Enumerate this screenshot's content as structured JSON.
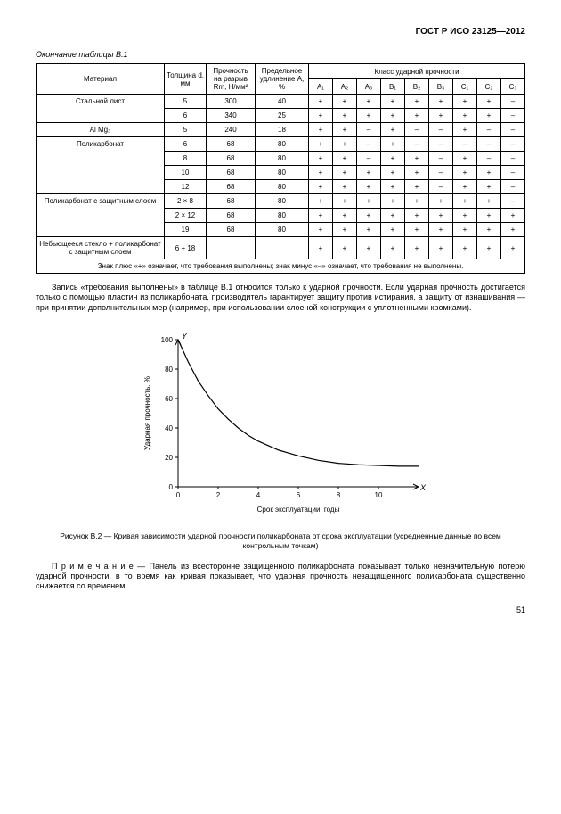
{
  "header": "ГОСТ Р ИСО 23125—2012",
  "tableTitle": "Окончание таблицы В.1",
  "columns": {
    "material": "Материал",
    "thickness": "Толщина d, мм",
    "strength": "Прочность на разрыв Rm, Н/мм²",
    "elongation": "Предельное удлинение А, %",
    "impactGroup": "Класс ударной прочности",
    "impactCols": [
      "A₁",
      "A₂",
      "A₃",
      "B₁",
      "B₂",
      "B₃",
      "C₁",
      "C₂",
      "C₃"
    ]
  },
  "rows": [
    {
      "material": "Стальной лист",
      "d": "5",
      "rm": "300",
      "a": "40",
      "cells": [
        "+",
        "+",
        "+",
        "+",
        "+",
        "+",
        "+",
        "+",
        "–"
      ],
      "rowspan": 2
    },
    {
      "material": "",
      "d": "6",
      "rm": "340",
      "a": "25",
      "cells": [
        "+",
        "+",
        "+",
        "+",
        "+",
        "+",
        "+",
        "+",
        "–"
      ]
    },
    {
      "material": "Al Mg₃",
      "d": "5",
      "rm": "240",
      "a": "18",
      "cells": [
        "+",
        "+",
        "–",
        "+",
        "–",
        "–",
        "+",
        "–",
        "–"
      ],
      "rowspan": 1
    },
    {
      "material": "Поликарбонат",
      "d": "6",
      "rm": "68",
      "a": "80",
      "cells": [
        "+",
        "+",
        "–",
        "+",
        "–",
        "–",
        "–",
        "–",
        "–"
      ],
      "rowspan": 4
    },
    {
      "material": "",
      "d": "8",
      "rm": "68",
      "a": "80",
      "cells": [
        "+",
        "+",
        "–",
        "+",
        "+",
        "–",
        "+",
        "–",
        "–"
      ]
    },
    {
      "material": "",
      "d": "10",
      "rm": "68",
      "a": "80",
      "cells": [
        "+",
        "+",
        "+",
        "+",
        "+",
        "–",
        "+",
        "+",
        "–"
      ]
    },
    {
      "material": "",
      "d": "12",
      "rm": "68",
      "a": "80",
      "cells": [
        "+",
        "+",
        "+",
        "+",
        "+",
        "–",
        "+",
        "+",
        "–"
      ]
    },
    {
      "material": "Поликарбонат с защитным слоем",
      "d": "2 × 8",
      "rm": "68",
      "a": "80",
      "cells": [
        "+",
        "+",
        "+",
        "+",
        "+",
        "+",
        "+",
        "+",
        "–"
      ],
      "rowspan": 3
    },
    {
      "material": "",
      "d": "2 × 12",
      "rm": "68",
      "a": "80",
      "cells": [
        "+",
        "+",
        "+",
        "+",
        "+",
        "+",
        "+",
        "+",
        "+"
      ]
    },
    {
      "material": "",
      "d": "19",
      "rm": "68",
      "a": "80",
      "cells": [
        "+",
        "+",
        "+",
        "+",
        "+",
        "+",
        "+",
        "+",
        "+"
      ]
    },
    {
      "material": "Небьющееся стекло + поликарбонат с защитным слоем",
      "d": "6 + 18",
      "rm": "",
      "a": "",
      "cells": [
        "+",
        "+",
        "+",
        "+",
        "+",
        "+",
        "+",
        "+",
        "+"
      ],
      "rowspan": 1
    }
  ],
  "tableNote": "Знак плюс «+» означает, что требования выполнены; знак минус «–» означает, что требования не выполнены.",
  "para1": "Запись «требования выполнены» в таблице В.1 относится только к ударной прочности. Если ударная прочность достигается только с помощью пластин из поликарбоната, производитель гарантирует защиту против истирания, а защиту от изнашивания — при принятии дополнительных мер (например, при использовании слоеной конструкции с уплотненными кромками).",
  "chart": {
    "ylabel": "Ударная прочность, %",
    "xlabel": "Срок эксплуатации, годы",
    "yAxisLabel": "Y",
    "xAxisLabel": "X",
    "xticks": [
      0,
      2,
      4,
      6,
      8,
      10
    ],
    "yticks": [
      0,
      20,
      40,
      60,
      80,
      100
    ],
    "xlim": [
      0,
      12
    ],
    "ylim": [
      0,
      100
    ],
    "curve": [
      [
        0,
        100
      ],
      [
        0.5,
        85
      ],
      [
        1,
        72
      ],
      [
        1.5,
        62
      ],
      [
        2,
        53
      ],
      [
        2.5,
        46
      ],
      [
        3,
        40
      ],
      [
        3.5,
        35
      ],
      [
        4,
        31
      ],
      [
        5,
        25
      ],
      [
        6,
        21
      ],
      [
        7,
        18
      ],
      [
        8,
        16
      ],
      [
        9,
        15
      ],
      [
        10,
        14.5
      ],
      [
        11,
        14
      ],
      [
        12,
        14
      ]
    ],
    "stroke": "#000000",
    "strokeWidth": 1.2,
    "axisColor": "#000000"
  },
  "chartCaption": "Рисунок В.2 — Кривая зависимости ударной прочности поликарбоната от срока эксплуатации (усредненные данные по всем контрольным точкам)",
  "notePara": "П р и м е ч а н и е — Панель из всесторонне защищенного поликарбоната показывает только незначительную потерю ударной прочности, в то время как кривая показывает, что ударная прочность незащищенного поликарбоната существенно снижается со временем.",
  "pageNum": "51"
}
